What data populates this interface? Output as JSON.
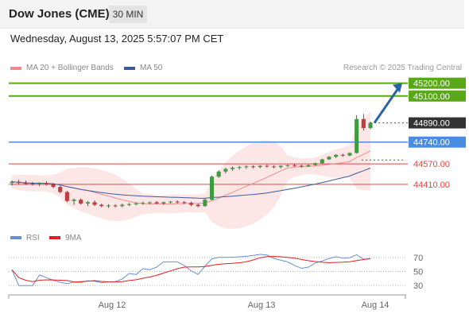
{
  "header": {
    "title": "Dow Jones (CME)",
    "interval": "30 MIN"
  },
  "datetime": "Wednesday, August 13, 2025 5:57:07 PM CET",
  "legend": {
    "ma20_label": "MA 20 + Bollinger Bands",
    "ma50_label": "MA 50",
    "copyright": "Research © 2025 Trading Central"
  },
  "rsi_legend": {
    "rsi_label": "RSI",
    "ma_label": "9MA"
  },
  "colors": {
    "target_green": "#5aa818",
    "pivot_blue": "#4a8de0",
    "support_red": "#e64545",
    "last_price_dark": "#333333",
    "arrow_blue": "#2a64a8",
    "bollinger_fill": "#fde3e3",
    "ma20": "#f08a8a",
    "ma50": "#3a5c9e",
    "candle_green": "#3f9b3f",
    "candle_red": "#c33c3c",
    "rsi_line": "#6a8fd8",
    "rsi_ma": "#e02020"
  },
  "price_levels": [
    {
      "label": "45200.00",
      "value": 45200,
      "kind": "target"
    },
    {
      "label": "45100.00",
      "value": 45100,
      "kind": "target"
    },
    {
      "label": "44890.00",
      "value": 44890,
      "kind": "last"
    },
    {
      "label": "44740.00",
      "value": 44740,
      "kind": "pivot"
    },
    {
      "label": "44570.00",
      "value": 44570,
      "kind": "support"
    },
    {
      "label": "44410.00",
      "value": 44410,
      "kind": "support"
    }
  ],
  "rsi_levels": [
    "70",
    "50",
    "30"
  ],
  "x_axis": [
    "Aug 12",
    "Aug 13",
    "Aug 14"
  ],
  "chart_data": {
    "type": "candlestick",
    "title": "Dow Jones (CME)",
    "interval": "30 MIN",
    "candles_ohlc_approx": [
      [
        44420,
        44440,
        44400,
        44430
      ],
      [
        44430,
        44445,
        44410,
        44420
      ],
      [
        44420,
        44440,
        44405,
        44415
      ],
      [
        44415,
        44430,
        44400,
        44410
      ],
      [
        44410,
        44425,
        44395,
        44420
      ],
      [
        44420,
        44435,
        44400,
        44410
      ],
      [
        44410,
        44420,
        44380,
        44390
      ],
      [
        44390,
        44400,
        44340,
        44350
      ],
      [
        44350,
        44360,
        44270,
        44280
      ],
      [
        44280,
        44300,
        44250,
        44290
      ],
      [
        44290,
        44300,
        44250,
        44260
      ],
      [
        44260,
        44280,
        44240,
        44270
      ],
      [
        44270,
        44285,
        44240,
        44250
      ],
      [
        44250,
        44260,
        44230,
        44240
      ],
      [
        44240,
        44255,
        44225,
        44245
      ],
      [
        44245,
        44255,
        44230,
        44240
      ],
      [
        44240,
        44260,
        44230,
        44250
      ],
      [
        44250,
        44265,
        44240,
        44255
      ],
      [
        44255,
        44270,
        44245,
        44260
      ],
      [
        44260,
        44275,
        44250,
        44265
      ],
      [
        44265,
        44275,
        44255,
        44270
      ],
      [
        44270,
        44280,
        44255,
        44260
      ],
      [
        44260,
        44275,
        44250,
        44270
      ],
      [
        44270,
        44280,
        44260,
        44275
      ],
      [
        44275,
        44285,
        44260,
        44270
      ],
      [
        44270,
        44280,
        44255,
        44265
      ],
      [
        44265,
        44275,
        44240,
        44250
      ],
      [
        44250,
        44260,
        44230,
        44240
      ],
      [
        44240,
        44300,
        44235,
        44290
      ],
      [
        44290,
        44480,
        44285,
        44470
      ],
      [
        44470,
        44520,
        44460,
        44510
      ],
      [
        44510,
        44540,
        44495,
        44530
      ],
      [
        44530,
        44550,
        44515,
        44540
      ],
      [
        44540,
        44555,
        44525,
        44545
      ],
      [
        44545,
        44560,
        44530,
        44550
      ],
      [
        44550,
        44560,
        44535,
        44545
      ],
      [
        44545,
        44560,
        44535,
        44555
      ],
      [
        44555,
        44565,
        44540,
        44550
      ],
      [
        44550,
        44560,
        44535,
        44545
      ],
      [
        44545,
        44560,
        44535,
        44555
      ],
      [
        44555,
        44565,
        44545,
        44560
      ],
      [
        44560,
        44570,
        44545,
        44555
      ],
      [
        44555,
        44565,
        44540,
        44550
      ],
      [
        44550,
        44565,
        44545,
        44560
      ],
      [
        44560,
        44580,
        44555,
        44575
      ],
      [
        44575,
        44610,
        44570,
        44605
      ],
      [
        44605,
        44630,
        44600,
        44625
      ],
      [
        44625,
        44645,
        44615,
        44640
      ],
      [
        44640,
        44650,
        44625,
        44635
      ],
      [
        44635,
        44660,
        44630,
        44655
      ],
      [
        44655,
        44950,
        44650,
        44920
      ],
      [
        44920,
        44960,
        44830,
        44850
      ],
      [
        44850,
        44900,
        44840,
        44890
      ]
    ],
    "levels": [
      45200,
      45100,
      44890,
      44740,
      44570,
      44410
    ],
    "y_range": [
      44080,
      45260
    ],
    "x_labels": [
      "Aug 12",
      "Aug 13",
      "Aug 14"
    ],
    "indicators": [
      "MA 20 + Bollinger Bands",
      "MA 50",
      "RSI",
      "9MA"
    ],
    "rsi_range": [
      20,
      80
    ],
    "rsi_ticks": [
      70,
      50,
      30
    ]
  }
}
